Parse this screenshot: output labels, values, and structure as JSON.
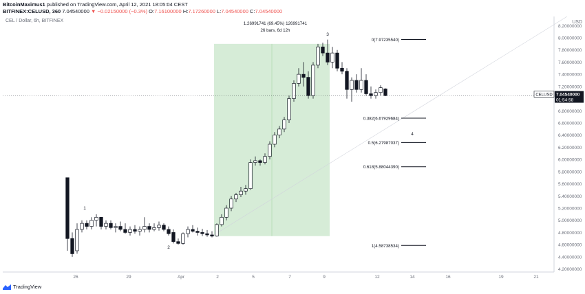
{
  "header": {
    "author": "BitcoinMaximus1",
    "published_text": "published on TradingView.com, April 12, 2021 18:05:04 CEST",
    "symbol_line": "BITFINEX:CELUSD, 360",
    "last": "7.04540000",
    "change": "▼ −0.02150000 (−0.3%)",
    "o_label": "O:",
    "o": "7.16100000",
    "h_label": "H:",
    "h": "7.17260000",
    "l_label": "L:",
    "l": "7.04540000",
    "c_label": "C:",
    "c": "7.04540000"
  },
  "pane_title": "CEL / Dollar, 6h, BITFINEX",
  "currency": "USD",
  "price_tag": {
    "symbol": "CELUSD",
    "price": "7.04540000",
    "countdown": "01:54:58",
    "color": "#131722"
  },
  "measure": {
    "line1": "1.26991741 (69.45%) 126991741",
    "line2": "26 bars, 6d 12h",
    "fill": "#c8e6c9"
  },
  "fib_levels": [
    {
      "label": "0(7.97235540)",
      "value": 7.9723554
    },
    {
      "label": "0.382(6.67929684)",
      "value": 6.67929684
    },
    {
      "label": "0.5(6.27987037)",
      "value": 6.27987037
    },
    {
      "label": "0.618(5.88044390)",
      "value": 5.8804439
    },
    {
      "label": "1(4.58738534)",
      "value": 4.58738534
    }
  ],
  "wave_labels": [
    "1",
    "2",
    "3",
    "4"
  ],
  "footer": {
    "brand": "TradingView"
  },
  "chart_data": {
    "type": "candlestick",
    "title": "CEL / Dollar, 6h, BITFINEX",
    "ylabel": "USD",
    "ylim": [
      4.15,
      8.35
    ],
    "y_ticks": [
      "8.20000000",
      "8.00000000",
      "7.80000000",
      "7.60000000",
      "7.40000000",
      "7.20000000",
      "7.00000000",
      "6.80000000",
      "6.60000000",
      "6.40000000",
      "6.20000000",
      "6.00000000",
      "5.80000000",
      "5.60000000",
      "5.40000000",
      "5.20000000",
      "5.00000000",
      "4.80000000",
      "4.60000000",
      "4.40000000",
      "4.20000000"
    ],
    "y_tick_values": [
      8.2,
      8.0,
      7.8,
      7.6,
      7.4,
      7.2,
      7.0,
      6.8,
      6.6,
      6.4,
      6.2,
      6.0,
      5.8,
      5.6,
      5.4,
      5.2,
      5.0,
      4.8,
      4.6,
      4.4,
      4.2
    ],
    "x_ticks": [
      "26",
      "29",
      "Apr",
      "2",
      "5",
      "7",
      "9",
      "12",
      "14",
      "16",
      "19",
      "21"
    ],
    "up_color": "#ffffff",
    "down_color": "#131722",
    "candles": [
      [
        5.7,
        5.7,
        4.5,
        4.7
      ],
      [
        4.7,
        4.8,
        4.4,
        4.45
      ],
      [
        4.5,
        4.95,
        4.45,
        4.85
      ],
      [
        4.85,
        5.0,
        4.8,
        4.95
      ],
      [
        4.95,
        5.0,
        4.85,
        4.9
      ],
      [
        4.9,
        5.05,
        4.85,
        5.0
      ],
      [
        5.0,
        5.1,
        4.9,
        5.05
      ],
      [
        5.05,
        5.05,
        4.85,
        4.9
      ],
      [
        4.9,
        5.0,
        4.85,
        4.95
      ],
      [
        4.95,
        5.0,
        4.85,
        4.88
      ],
      [
        4.88,
        4.95,
        4.8,
        4.9
      ],
      [
        4.9,
        4.98,
        4.82,
        4.85
      ],
      [
        4.85,
        4.95,
        4.78,
        4.8
      ],
      [
        4.8,
        4.9,
        4.75,
        4.85
      ],
      [
        4.85,
        4.92,
        4.78,
        4.82
      ],
      [
        4.82,
        4.9,
        4.75,
        4.85
      ],
      [
        4.85,
        5.05,
        4.8,
        4.9
      ],
      [
        4.9,
        4.95,
        4.8,
        4.85
      ],
      [
        4.85,
        4.95,
        4.82,
        4.88
      ],
      [
        4.88,
        4.98,
        4.83,
        4.92
      ],
      [
        4.92,
        4.95,
        4.82,
        4.85
      ],
      [
        4.85,
        4.9,
        4.75,
        4.78
      ],
      [
        4.8,
        4.85,
        4.62,
        4.65
      ],
      [
        4.65,
        4.7,
        4.6,
        4.62
      ],
      [
        4.62,
        4.8,
        4.6,
        4.78
      ],
      [
        4.78,
        4.9,
        4.72,
        4.85
      ],
      [
        4.85,
        4.92,
        4.8,
        4.82
      ],
      [
        4.82,
        4.88,
        4.75,
        4.8
      ],
      [
        4.8,
        4.86,
        4.74,
        4.78
      ],
      [
        4.78,
        4.84,
        4.73,
        4.76
      ],
      [
        4.76,
        4.82,
        4.72,
        4.74
      ],
      [
        4.74,
        4.95,
        4.73,
        4.93
      ],
      [
        4.93,
        5.1,
        4.9,
        5.05
      ],
      [
        5.05,
        5.25,
        5.0,
        5.2
      ],
      [
        5.2,
        5.4,
        5.15,
        5.35
      ],
      [
        5.35,
        5.45,
        5.3,
        5.42
      ],
      [
        5.42,
        5.55,
        5.38,
        5.48
      ],
      [
        5.48,
        5.58,
        5.42,
        5.52
      ],
      [
        5.52,
        6.0,
        5.5,
        5.95
      ],
      [
        5.95,
        6.05,
        5.9,
        5.98
      ],
      [
        5.98,
        6.0,
        5.9,
        5.95
      ],
      [
        5.95,
        6.1,
        5.92,
        6.05
      ],
      [
        6.05,
        6.3,
        6.0,
        6.25
      ],
      [
        6.25,
        6.45,
        6.2,
        6.4
      ],
      [
        6.4,
        6.55,
        6.35,
        6.5
      ],
      [
        6.5,
        6.7,
        6.45,
        6.65
      ],
      [
        6.65,
        7.05,
        6.6,
        7.0
      ],
      [
        7.0,
        7.3,
        6.95,
        7.25
      ],
      [
        7.25,
        7.5,
        7.2,
        7.4
      ],
      [
        7.4,
        7.6,
        7.2,
        7.35
      ],
      [
        7.35,
        7.45,
        7.0,
        7.05
      ],
      [
        7.05,
        7.6,
        7.0,
        7.55
      ],
      [
        7.55,
        7.9,
        7.5,
        7.85
      ],
      [
        7.85,
        7.92,
        7.7,
        7.75
      ],
      [
        7.75,
        7.97,
        7.55,
        7.6
      ],
      [
        7.6,
        7.85,
        7.5,
        7.75
      ],
      [
        7.75,
        7.8,
        7.45,
        7.5
      ],
      [
        7.5,
        7.6,
        7.4,
        7.45
      ],
      [
        7.45,
        7.5,
        7.0,
        7.15
      ],
      [
        7.15,
        7.35,
        6.95,
        7.3
      ],
      [
        7.3,
        7.4,
        7.1,
        7.15
      ],
      [
        7.15,
        7.5,
        7.1,
        7.3
      ],
      [
        7.3,
        7.4,
        7.05,
        7.08
      ],
      [
        7.08,
        7.2,
        7.0,
        7.05
      ],
      [
        7.05,
        7.15,
        7.0,
        7.1
      ],
      [
        7.1,
        7.22,
        7.05,
        7.18
      ],
      [
        7.16,
        7.17,
        7.04,
        7.05
      ]
    ]
  }
}
